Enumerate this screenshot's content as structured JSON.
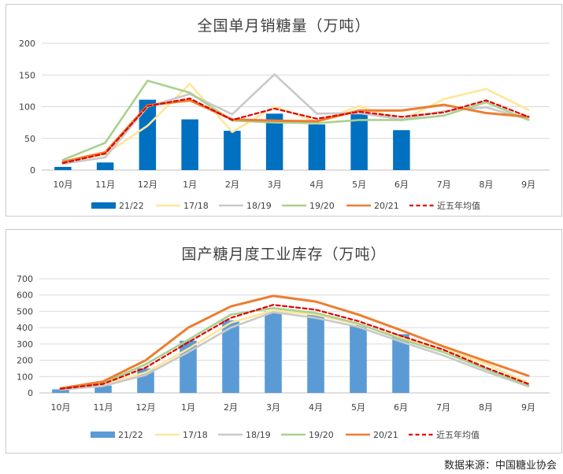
{
  "source_note": "数据来源：中国糖业协会",
  "colors": {
    "21/22_sales": "#0070c0",
    "21/22_stock": "#5b9bd5",
    "17/18": "#ffe699",
    "18/19": "#c9c9c9",
    "19/20": "#a9d18e",
    "20/21": "#ed7d31",
    "avg5": "#e00000"
  },
  "chart_data": [
    {
      "type": "bar+line",
      "title": "全国单月销糖量（万吨）",
      "categories": [
        "10月",
        "11月",
        "12月",
        "1月",
        "2月",
        "3月",
        "4月",
        "5月",
        "6月",
        "7月",
        "8月",
        "9月"
      ],
      "ylim": [
        0,
        200
      ],
      "yticks": [
        0,
        50,
        100,
        150,
        200
      ],
      "grid": true,
      "legend": "bottom",
      "bar_series": {
        "name": "21/22",
        "values": [
          5,
          12,
          111,
          80,
          62,
          89,
          72,
          88,
          63
        ]
      },
      "line_series": [
        {
          "name": "17/18",
          "values": [
            12,
            25,
            70,
            136,
            60,
            100,
            76,
            101,
            78,
            112,
            128,
            95
          ]
        },
        {
          "name": "18/19",
          "values": [
            10,
            20,
            100,
            120,
            88,
            151,
            89,
            90,
            80,
            93,
            99,
            80
          ]
        },
        {
          "name": "19/20",
          "values": [
            16,
            43,
            141,
            122,
            78,
            75,
            74,
            79,
            79,
            86,
            107,
            79
          ]
        },
        {
          "name": "20/21",
          "values": [
            13,
            28,
            102,
            110,
            80,
            78,
            77,
            94,
            94,
            103,
            90,
            84
          ]
        },
        {
          "name": "近五年均值",
          "values": [
            11,
            26,
            101,
            113,
            79,
            97,
            81,
            92,
            84,
            91,
            110,
            84
          ],
          "dashed": true
        }
      ]
    },
    {
      "type": "bar+line",
      "title": "国产糖月度工业库存（万吨）",
      "categories": [
        "10月",
        "11月",
        "12月",
        "1月",
        "2月",
        "3月",
        "4月",
        "5月",
        "6月",
        "7月",
        "8月",
        "9月"
      ],
      "ylim": [
        0,
        700
      ],
      "yticks": [
        0,
        100,
        200,
        300,
        400,
        500,
        600,
        700
      ],
      "grid": true,
      "legend": "bottom",
      "bar_series": {
        "name": "21/22",
        "values": [
          22,
          45,
          150,
          320,
          445,
          500,
          480,
          415,
          360
        ]
      },
      "line_series": [
        {
          "name": "17/18",
          "values": [
            22,
            50,
            125,
            270,
            430,
            505,
            480,
            420,
            340,
            265,
            180,
            60
          ]
        },
        {
          "name": "18/19",
          "values": [
            20,
            42,
            110,
            250,
            400,
            495,
            460,
            405,
            315,
            230,
            130,
            40
          ]
        },
        {
          "name": "19/20",
          "values": [
            25,
            60,
            175,
            325,
            480,
            520,
            490,
            425,
            330,
            250,
            145,
            45
          ]
        },
        {
          "name": "20/21",
          "values": [
            28,
            70,
            200,
            400,
            530,
            595,
            560,
            480,
            385,
            285,
            195,
            105
          ]
        },
        {
          "name": "近五年均值",
          "values": [
            25,
            55,
            155,
            310,
            460,
            540,
            510,
            440,
            350,
            265,
            155,
            55
          ],
          "dashed": true
        }
      ]
    }
  ]
}
